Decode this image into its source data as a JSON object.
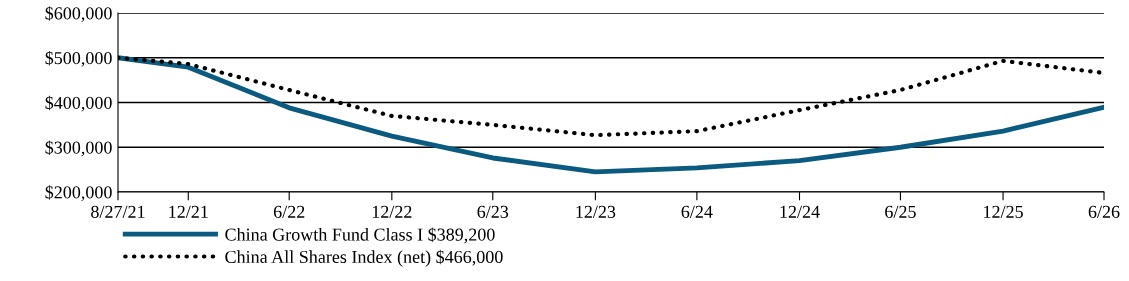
{
  "chart_data": {
    "type": "line",
    "x": [
      "2021-08-27",
      "2021-12-31",
      "2022-06-30",
      "2022-12-31",
      "2023-06-30",
      "2023-12-31",
      "2024-06-30",
      "2024-12-31",
      "2025-06-30",
      "2025-12-31",
      "2026-06-30"
    ],
    "series": [
      {
        "name": "China Growth Fund Class I $389,200",
        "color": "#0b5a80",
        "line_style": "solid",
        "values": [
          500000,
          479000,
          388000,
          325000,
          276000,
          245000,
          254000,
          270000,
          300000,
          336000,
          389200
        ]
      },
      {
        "name": "China All Shares Index (net) $466,000",
        "color": "#000000",
        "line_style": "dotted",
        "values": [
          500000,
          486000,
          428000,
          370000,
          350000,
          327000,
          336000,
          383000,
          428000,
          493000,
          466000
        ]
      }
    ],
    "xlim": [
      "2021-08-27",
      "2026-06-30"
    ],
    "xticks": [
      {
        "value": "2021-08-27",
        "label": "8/27/21"
      },
      {
        "value": "2021-12-31",
        "label": "12/21"
      },
      {
        "value": "2022-06-30",
        "label": "6/22"
      },
      {
        "value": "2022-12-31",
        "label": "12/22"
      },
      {
        "value": "2023-06-30",
        "label": "6/23"
      },
      {
        "value": "2023-12-31",
        "label": "12/23"
      },
      {
        "value": "2024-06-30",
        "label": "6/24"
      },
      {
        "value": "2024-12-31",
        "label": "12/24"
      },
      {
        "value": "2025-06-30",
        "label": "6/25"
      },
      {
        "value": "2025-12-31",
        "label": "12/25"
      },
      {
        "value": "2026-06-30",
        "label": "6/26"
      }
    ],
    "ylim": [
      200000,
      600000
    ],
    "yticks": [
      {
        "value": 200000,
        "label": "$200,000"
      },
      {
        "value": 300000,
        "label": "$300,000"
      },
      {
        "value": 400000,
        "label": "$400,000"
      },
      {
        "value": 500000,
        "label": "$500,000"
      },
      {
        "value": 600000,
        "label": "$600,000"
      }
    ],
    "grid": "y",
    "legend": "bottom left",
    "marker": "none"
  }
}
